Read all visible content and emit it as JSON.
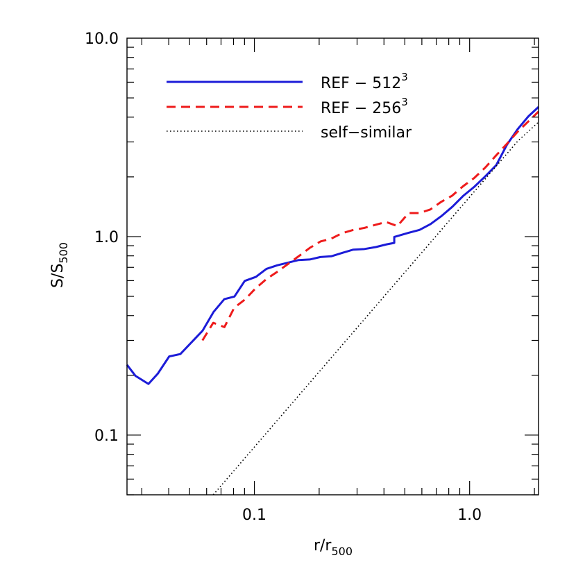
{
  "chart_data": {
    "type": "line",
    "xscale": "log",
    "yscale": "log",
    "xlim": [
      0.0256,
      2.09
    ],
    "ylim": [
      0.05,
      10.0
    ],
    "xlabel": {
      "base": "r/r",
      "sub": "500"
    },
    "ylabel": {
      "base": "S/S",
      "sub": "500"
    },
    "x_ticks": [
      {
        "value": 0.1,
        "label": "0.1"
      },
      {
        "value": 1.0,
        "label": "1.0"
      }
    ],
    "y_ticks": [
      {
        "value": 0.1,
        "label": "0.1"
      },
      {
        "value": 1.0,
        "label": "1.0"
      },
      {
        "value": 10.0,
        "label": "10.0"
      }
    ],
    "grid": false,
    "legend": {
      "position": "top-left",
      "entries": [
        {
          "base": "REF − 512",
          "sup": "3",
          "series": 0
        },
        {
          "base": "REF − 256",
          "sup": "3",
          "series": 1
        },
        {
          "base": "self−similar",
          "sup": "",
          "series": 2
        }
      ]
    },
    "series": [
      {
        "color": "#1c1cd8",
        "dash": "solid",
        "points": [
          [
            0.0256,
            0.226
          ],
          [
            0.028,
            0.199
          ],
          [
            0.0322,
            0.181
          ],
          [
            0.0356,
            0.204
          ],
          [
            0.0402,
            0.249
          ],
          [
            0.0453,
            0.256
          ],
          [
            0.0575,
            0.336
          ],
          [
            0.0647,
            0.418
          ],
          [
            0.0725,
            0.484
          ],
          [
            0.0808,
            0.499
          ],
          [
            0.0902,
            0.598
          ],
          [
            0.1017,
            0.627
          ],
          [
            0.1138,
            0.688
          ],
          [
            0.1277,
            0.717
          ],
          [
            0.1606,
            0.762
          ],
          [
            0.1809,
            0.767
          ],
          [
            0.2025,
            0.789
          ],
          [
            0.2277,
            0.796
          ],
          [
            0.2558,
            0.828
          ],
          [
            0.2882,
            0.86
          ],
          [
            0.3248,
            0.866
          ],
          [
            0.3666,
            0.886
          ],
          [
            0.4115,
            0.914
          ],
          [
            0.4466,
            0.93
          ],
          [
            0.4466,
            0.996
          ],
          [
            0.5207,
            1.045
          ],
          [
            0.5849,
            1.081
          ],
          [
            0.658,
            1.156
          ],
          [
            0.7397,
            1.269
          ],
          [
            0.8313,
            1.414
          ],
          [
            0.9316,
            1.601
          ],
          [
            1.0496,
            1.78
          ],
          [
            1.1806,
            2.009
          ],
          [
            1.3287,
            2.29
          ],
          [
            1.4909,
            2.905
          ],
          [
            1.6732,
            3.482
          ],
          [
            1.8779,
            4.043
          ],
          [
            2.09,
            4.501
          ]
        ]
      },
      {
        "color": "#ee1b1b",
        "dash": "dashed",
        "points": [
          [
            0.0574,
            0.3
          ],
          [
            0.0644,
            0.368
          ],
          [
            0.0726,
            0.35
          ],
          [
            0.0806,
            0.438
          ],
          [
            0.0904,
            0.482
          ],
          [
            0.1012,
            0.548
          ],
          [
            0.1138,
            0.611
          ],
          [
            0.1278,
            0.665
          ],
          [
            0.1433,
            0.728
          ],
          [
            0.1608,
            0.797
          ],
          [
            0.1805,
            0.876
          ],
          [
            0.2028,
            0.945
          ],
          [
            0.2273,
            0.976
          ],
          [
            0.2557,
            1.041
          ],
          [
            0.2883,
            1.081
          ],
          [
            0.3242,
            1.106
          ],
          [
            0.3641,
            1.146
          ],
          [
            0.4093,
            1.185
          ],
          [
            0.4615,
            1.13
          ],
          [
            0.5204,
            1.314
          ],
          [
            0.5842,
            1.314
          ],
          [
            0.6573,
            1.371
          ],
          [
            0.7385,
            1.498
          ],
          [
            0.8286,
            1.607
          ],
          [
            0.9325,
            1.794
          ],
          [
            1.0488,
            1.971
          ],
          [
            1.1809,
            2.226
          ],
          [
            1.3284,
            2.566
          ],
          [
            1.4916,
            2.938
          ],
          [
            1.6747,
            3.386
          ],
          [
            1.8823,
            3.822
          ],
          [
            2.09,
            4.267
          ]
        ]
      },
      {
        "color": "#000000",
        "dash": "dotted",
        "points": [
          [
            0.0644,
            0.05
          ],
          [
            1.6755,
            3.032
          ],
          [
            2.09,
            3.778
          ]
        ]
      }
    ]
  }
}
